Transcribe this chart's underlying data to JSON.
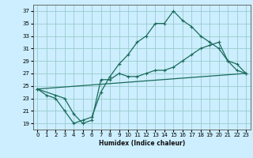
{
  "title": "",
  "xlabel": "Humidex (Indice chaleur)",
  "bg_color": "#cceeff",
  "grid_color": "#99cccc",
  "line_color": "#1a6b5a",
  "xlim": [
    -0.5,
    23.5
  ],
  "ylim": [
    18,
    38
  ],
  "yticks": [
    19,
    21,
    23,
    25,
    27,
    29,
    31,
    33,
    35,
    37
  ],
  "xticks": [
    0,
    1,
    2,
    3,
    4,
    5,
    6,
    7,
    8,
    9,
    10,
    11,
    12,
    13,
    14,
    15,
    16,
    17,
    18,
    19,
    20,
    21,
    22,
    23
  ],
  "line1_x": [
    0,
    1,
    2,
    3,
    4,
    5,
    6,
    7,
    8,
    9,
    10,
    11,
    12,
    13,
    14,
    15,
    16,
    17,
    18,
    19,
    20,
    21,
    22,
    23
  ],
  "line1_y": [
    24.5,
    23.5,
    23.0,
    21.0,
    19.0,
    19.5,
    20.0,
    24.0,
    26.5,
    28.5,
    30.0,
    32.0,
    33.0,
    35.0,
    35.0,
    37.0,
    35.5,
    34.5,
    33.0,
    32.0,
    31.0,
    29.0,
    28.5,
    27.0
  ],
  "line2_x": [
    0,
    2,
    3,
    4,
    5,
    6,
    7,
    8,
    9,
    10,
    11,
    12,
    13,
    14,
    15,
    16,
    17,
    18,
    19,
    20,
    21,
    22,
    23
  ],
  "line2_y": [
    24.5,
    23.5,
    23.0,
    20.5,
    19.0,
    19.5,
    26.0,
    26.0,
    27.0,
    26.5,
    26.5,
    27.0,
    27.5,
    27.5,
    28.0,
    29.0,
    30.0,
    31.0,
    31.5,
    32.0,
    29.0,
    27.5,
    27.0
  ],
  "line3_x": [
    0,
    23
  ],
  "line3_y": [
    24.5,
    27.0
  ]
}
